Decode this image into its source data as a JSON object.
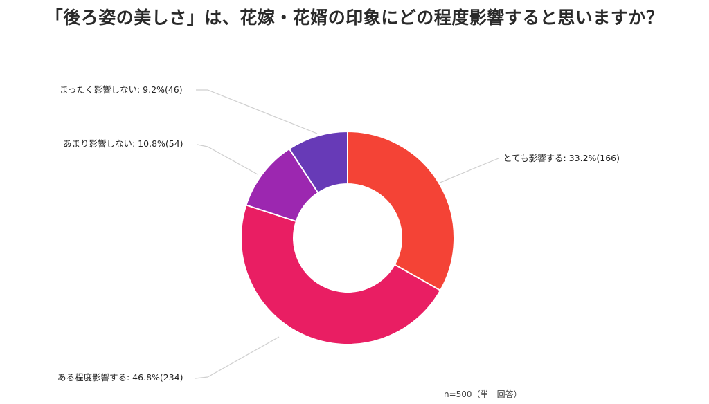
{
  "title": "「後ろ姿の美しさ」は、花嫁・花婿の印象にどの程度影響すると思いますか？",
  "note": "n=500（単一回答）",
  "labels": {
    "l0": "とても影響する: 33.2%(166)",
    "l1": "ある程度影響する: 46.8%(234)",
    "l2": "あまり影響しない: 10.8%(54)",
    "l3": "まったく影響しない: 9.2%(46)"
  },
  "chart_data": {
    "type": "pie",
    "variant": "donut",
    "title": "「後ろ姿の美しさ」は、花嫁・花婿の印象にどの程度影響すると思いますか？",
    "categories": [
      "とても影響する",
      "ある程度影響する",
      "あまり影響しない",
      "まったく影響しない"
    ],
    "values": [
      33.2,
      46.8,
      10.8,
      9.2
    ],
    "counts": [
      166,
      234,
      54,
      46
    ],
    "unit": "%",
    "colors": [
      "#F44336",
      "#E91E63",
      "#9C27B0",
      "#673AB7"
    ],
    "total_n": 500,
    "annotation": "n=500（単一回答）",
    "start_angle": "12 o'clock, clockwise",
    "legend": "none (leader-line labels)"
  }
}
